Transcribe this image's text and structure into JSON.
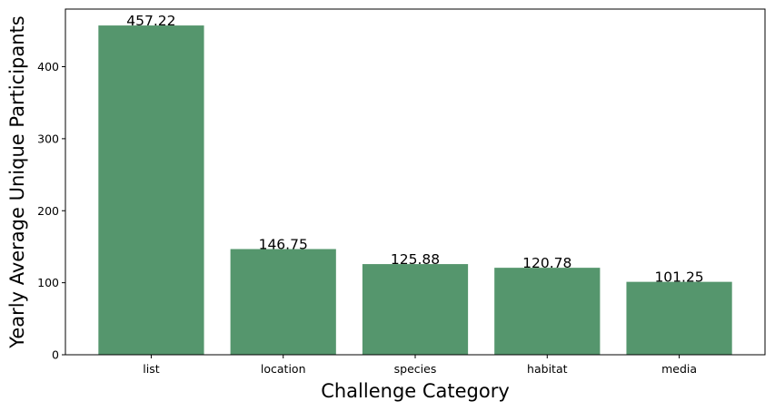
{
  "chart_data": {
    "type": "bar",
    "categories": [
      "list",
      "location",
      "species",
      "habitat",
      "media"
    ],
    "values": [
      457.22,
      146.75,
      125.88,
      120.78,
      101.25
    ],
    "value_labels": [
      "457.22",
      "146.75",
      "125.88",
      "120.78",
      "101.25"
    ],
    "title": "",
    "xlabel": "Challenge Category",
    "ylabel": "Yearly Average Unique Participants",
    "ylim": [
      0,
      480
    ],
    "yticks": [
      0,
      100,
      200,
      300,
      400
    ],
    "ytick_labels": [
      "0",
      "100",
      "200",
      "300",
      "400"
    ],
    "bar_color": "#55966d",
    "grid": false,
    "legend": "none"
  }
}
